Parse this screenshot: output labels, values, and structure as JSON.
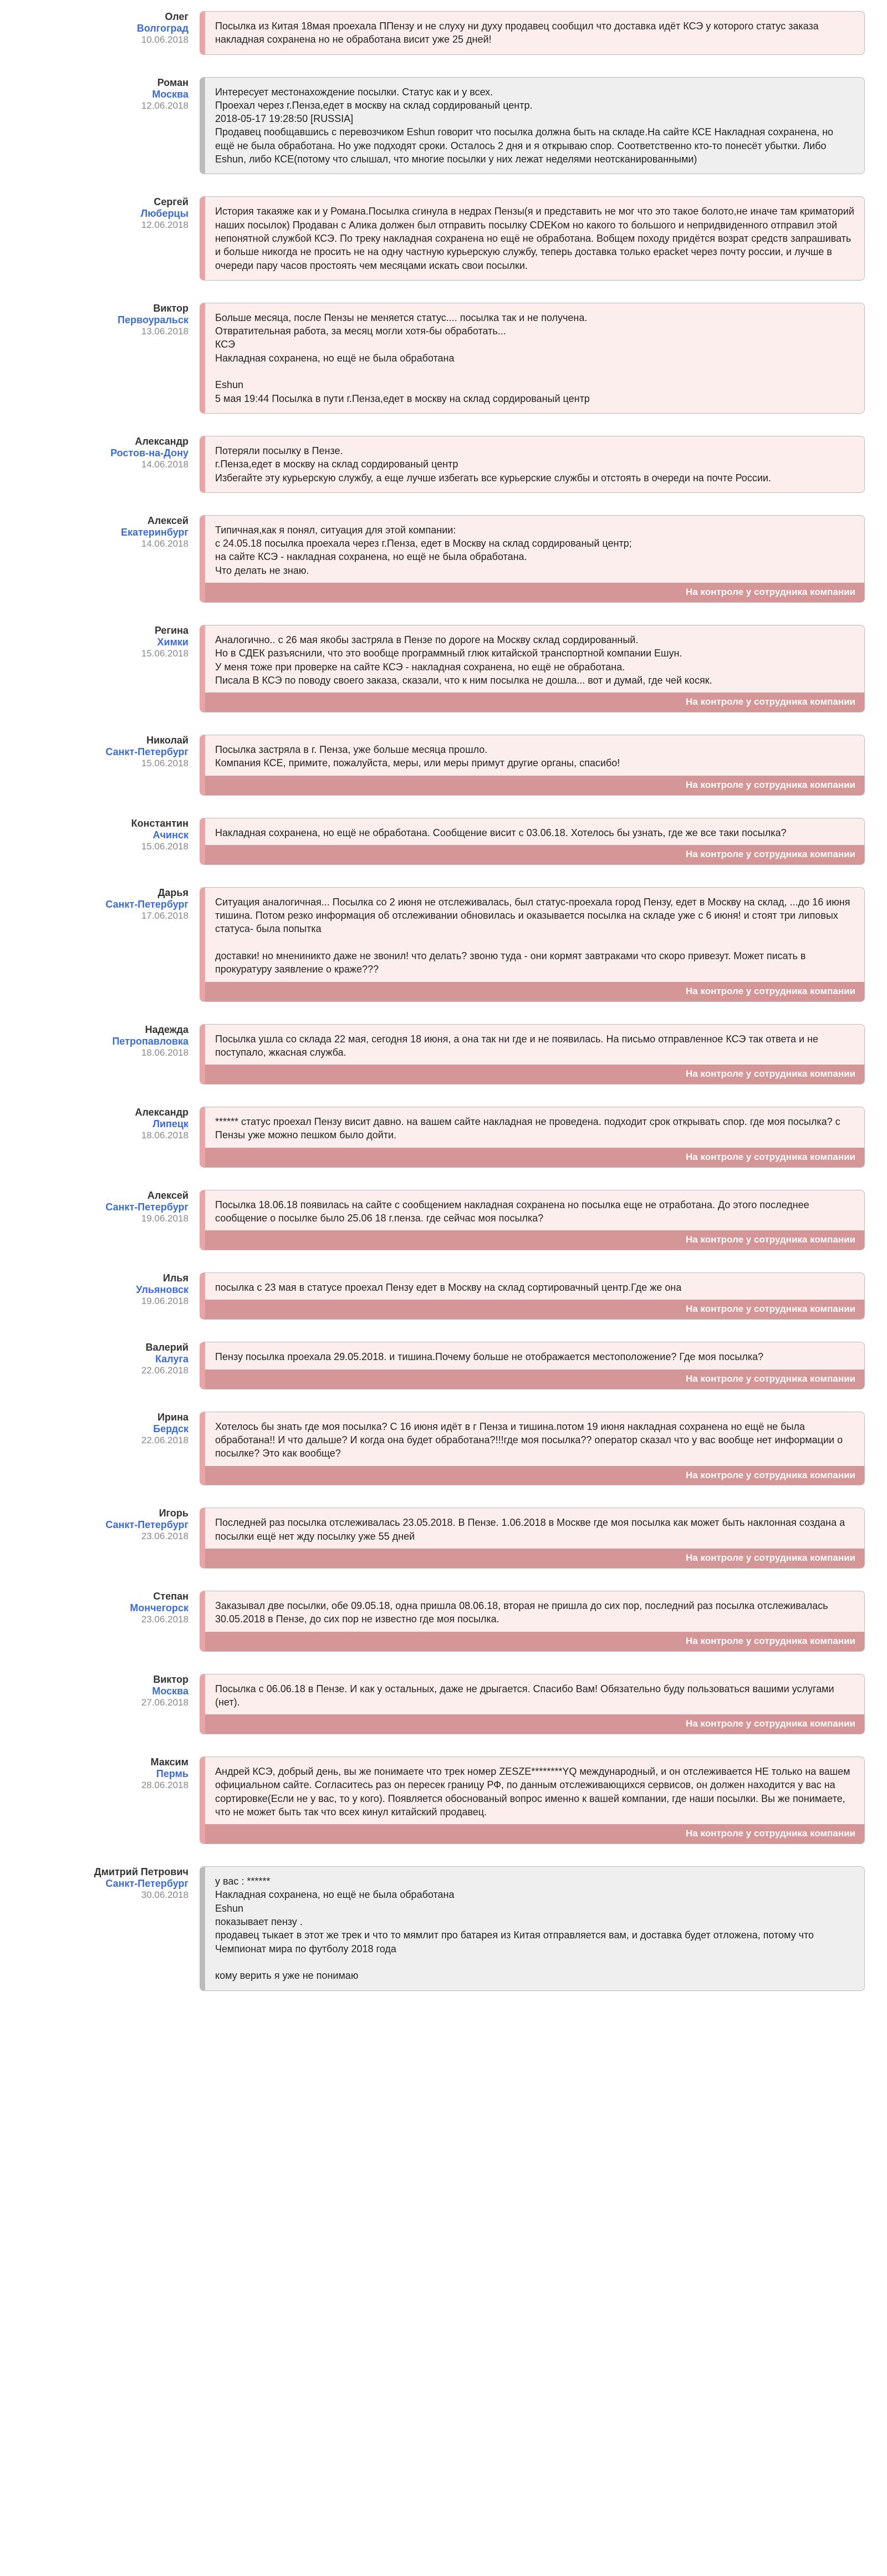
{
  "control_label": "На контроле у сотрудника компании",
  "reviews": [
    {
      "name": "Олег",
      "city": "Волгоград",
      "date": "10.06.2018",
      "type": "negative",
      "control": false,
      "text": "Посылка из Китая 18мая проехала ППензу и не слуху ни духу продавец сообщил что доставка идёт КСЭ у которого статус заказа накладная сохранена но не обработана висит уже 25 дней!"
    },
    {
      "name": "Роман",
      "city": "Москва",
      "date": "12.06.2018",
      "type": "neutral",
      "control": false,
      "text": "Интересует местонахождение посылки. Статус как и у всех.\nПроехал через г.Пенза,едет в москву на склад сордированый центр.\n2018-05-17 19:28:50 [RUSSIA]\nПродавец пообщавшись с перевозчиком Eshun говорит что посылка должна быть на складе.На сайте КСЕ Накладная сохранена, но ещё не была обработана. Но уже подходят сроки. Осталось 2 дня и я открываю спор. Соответственно кто-то понесёт убытки. Либо Eshun, либо КСЕ(потому что слышал, что многие посылки у них лежат неделями неотсканированными)"
    },
    {
      "name": "Сергей",
      "city": "Люберцы",
      "date": "12.06.2018",
      "type": "negative",
      "control": false,
      "text": "История такаяже как и у Романа.Посылка сгинула в недрах Пензы(я и представить не мог что это такое болото,не иначе там криматорий наших посылок) Продаван с Алика должен был отправить посылку CDEKом но какого то большого и непридвиденного отправил этой непонятной службой КСЭ. По треку накладная сохранена но ещё не обработана. Вобщем походу придётся возрат средств запрашивать и больше никогда не просить не на одну частную курьерскую службу, теперь доставка только epacket через почту россии, и лучше в очереди пару часов простоять чем месяцами искать свои посылки."
    },
    {
      "name": "Виктор",
      "city": "Первоуральск",
      "date": "13.06.2018",
      "type": "negative",
      "control": false,
      "text": "Больше месяца, после Пензы не меняется статус.... посылка так и не получена.\nОтвратительная работа, за месяц могли хотя-бы обработать...\nКСЭ\nНакладная сохранена, но ещё не была обработана\n\nEshun\n5 мая 19:44 Посылка в пути г.Пенза,едет в москву на склад сордированый центр"
    },
    {
      "name": "Александр",
      "city": "Ростов-на-Дону",
      "date": "14.06.2018",
      "type": "negative",
      "control": false,
      "text": "Потеряли посылку в Пензе.\nг.Пенза,едет в москву на склад сордированый центр\nИзбегайте эту курьерскую службу, а еще лучше избегать все курьерские службы и отстоять в очереди на почте России."
    },
    {
      "name": "Алексей",
      "city": "Екатеринбург",
      "date": "14.06.2018",
      "type": "negative",
      "control": true,
      "text": "Типичная,как я понял, ситуация для этой компании:\nс 24.05.18 посылка проехала через г.Пенза, едет в Москву на склад сордированый центр;\nна сайте КСЭ - накладная сохранена, но ещё не была обработана.\nЧто делать не знаю."
    },
    {
      "name": "Регина",
      "city": "Химки",
      "date": "15.06.2018",
      "type": "negative",
      "control": true,
      "text": "Аналогично.. с 26 мая якобы застряла в Пензе по дороге на Москву склад сордированный.\nНо в СДЕК разъяснили, что это вообще программный глюк китайской транспортной компании Ешун.\nУ меня тоже при проверке на сайте КСЭ - накладная сохранена, но ещё не обработана.\nПисала В КСЭ по поводу своего заказа, сказали, что к ним посылка не дошла... вот и думай, где чей косяк."
    },
    {
      "name": "Николай",
      "city": "Санкт-Петербург",
      "date": "15.06.2018",
      "type": "negative",
      "control": true,
      "text": "Посылка застряла в г. Пенза, уже больше месяца прошло.\nКомпания КСЕ, примите, пожалуйста, меры, или меры примут другие органы, спасибо!"
    },
    {
      "name": "Константин",
      "city": "Ачинск",
      "date": "15.06.2018",
      "type": "negative",
      "control": true,
      "text": "Накладная сохранена, но ещё не обработана. Сообщение висит с 03.06.18. Хотелось бы узнать, где же все таки посылка?"
    },
    {
      "name": "Дарья",
      "city": "Санкт-Петербург",
      "date": "17.06.2018",
      "type": "negative",
      "control": true,
      "text": "Ситуация аналогичная... Посылка со 2 июня не отслеживалась, был статус-проехала город Пензу, едет в Москву на склад, ...до 16 июня тишина. Потом резко информация об отслеживании обновилась и оказывается посылка на складе уже с 6 июня! и стоят три липовых статуса- была попытка\n\nдоставки! но мнениникто даже не звонил! что делать? звоню туда - они кормят завтраками что скоро привезут. Может писать в прокуратуру заявление о краже???"
    },
    {
      "name": "Надежда",
      "city": "Петропавловка",
      "date": "18.06.2018",
      "type": "negative",
      "control": true,
      "text": "Посылка ушла со склада 22 мая, сегодня 18 июня, а она так ни где и не появилась. На письмо отправленное КСЭ так ответа и не поступало, жкасная служба."
    },
    {
      "name": "Александр",
      "city": "Липецк",
      "date": "18.06.2018",
      "type": "negative",
      "control": true,
      "text": "****** статус проехал Пензу висит давно. на вашем сайте накладная не проведена. подходит срок открывать спор. где моя посылка? с Пензы уже можно пешком было дойти."
    },
    {
      "name": "Алексей",
      "city": "Санкт-Петербург",
      "date": "19.06.2018",
      "type": "negative",
      "control": true,
      "text": "Посылка 18.06.18 появилась на сайте с сообщением накладная сохранена но посылка еще не отработана. До этого последнее сообщение о посылке было 25.06 18 г.пенза. где сейчас моя посылка?"
    },
    {
      "name": "Илья",
      "city": "Ульяновск",
      "date": "19.06.2018",
      "type": "negative",
      "control": true,
      "text": "посылка с 23 мая в статусе проехал Пензу едет в Москву на склад сортировачный центр.Где же она"
    },
    {
      "name": "Валерий",
      "city": "Калуга",
      "date": "22.06.2018",
      "type": "negative",
      "control": true,
      "text": "Пензу посылка проехала 29.05.2018. и тишина.Почему больше не отображается местоположение? Где моя посылка?"
    },
    {
      "name": "Ирина",
      "city": "Бердск",
      "date": "22.06.2018",
      "type": "negative",
      "control": true,
      "text": "Хотелось бы знать где моя посылка? С 16 июня идёт в г Пенза и тишина.потом 19 июня накладная сохранена но ещё не была обработана!! И что дальше? И когда она будет обработана?!!!где моя посылка?? оператор сказал что у вас вообще нет информации о посылке? Это как вообще?"
    },
    {
      "name": "Игорь",
      "city": "Санкт-Петербург",
      "date": "23.06.2018",
      "type": "negative",
      "control": true,
      "text": "Последней раз посылка отслеживалась 23.05.2018. В Пензе. 1.06.2018 в Москве где моя посылка как может быть наклонная создана а посылки ещё нет жду посылку уже 55 дней"
    },
    {
      "name": "Степан",
      "city": "Мончегорск",
      "date": "23.06.2018",
      "type": "negative",
      "control": true,
      "text": "Заказывал две посылки, обе 09.05.18, одна пришла 08.06.18, вторая не пришла до сих пор, последний раз посылка отслеживалась 30.05.2018 в Пензе, до сих пор не известно где моя посылка."
    },
    {
      "name": "Виктор",
      "city": "Москва",
      "date": "27.06.2018",
      "type": "negative",
      "control": true,
      "text": "Посылка с 06.06.18 в Пензе. И как у остальных, даже не дрыгается. Спасибо Вам! Обязательно буду пользоваться вашими услугами (нет)."
    },
    {
      "name": "Максим",
      "city": "Пермь",
      "date": "28.06.2018",
      "type": "negative",
      "control": true,
      "text": "Андрей КСЭ, добрый день, вы же понимаете что трек номер ZESZE********YQ международный, и он отслеживается НЕ только на вашем официальном сайте. Согласитесь раз он пересек границу РФ, по данным отслеживающихся сервисов, он должен находится у вас на сортировке(Если не у вас, то у кого). Появляется обоснованый вопрос именно к вашей компании, где наши посылки. Вы же понимаете, что не может быть так что всех кинул китайский продавец."
    },
    {
      "name": "Дмитрий Петрович",
      "city": "Санкт-Петербург",
      "date": "30.06.2018",
      "type": "neutral",
      "control": false,
      "text": "у вас : ******\nНакладная сохранена, но ещё не была обработана\nEshun\nпоказывает пензу .\nпродавец тыкает в этот же трек и что то мямлит про батарея из Китая отправляется вам, и доставка будет отложена, потому что Чемпионат мира по футболу 2018 года\n\nкому верить я уже не понимаю"
    }
  ]
}
